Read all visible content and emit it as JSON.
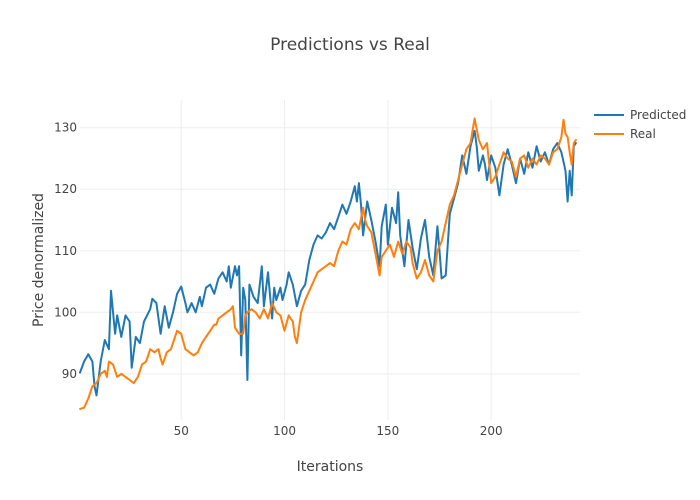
{
  "chart_data": {
    "type": "line",
    "title": "Predictions vs Real",
    "xlabel": "Iterations",
    "ylabel": "Price denormalized",
    "xlim": [
      1,
      243
    ],
    "ylim": [
      82.5,
      134.5
    ],
    "xticks": [
      50,
      100,
      150,
      200
    ],
    "yticks": [
      90,
      100,
      110,
      120,
      130
    ],
    "xtick_labels": [
      "50",
      "100",
      "150",
      "200"
    ],
    "ytick_labels": [
      "90",
      "100",
      "110",
      "120",
      "130"
    ],
    "grid": true,
    "legend_position": "top-right",
    "series": [
      {
        "name": "Predicted",
        "color": "#1f77b4",
        "anchors": [
          [
            1,
            90.2
          ],
          [
            3,
            92.0
          ],
          [
            5,
            93.2
          ],
          [
            7,
            92.0
          ],
          [
            8,
            88.0
          ],
          [
            9,
            86.5
          ],
          [
            11,
            92.0
          ],
          [
            13,
            95.5
          ],
          [
            15,
            94.0
          ],
          [
            16,
            103.5
          ],
          [
            18,
            96.5
          ],
          [
            19,
            99.5
          ],
          [
            21,
            96.0
          ],
          [
            23,
            99.5
          ],
          [
            25,
            98.5
          ],
          [
            26,
            91.0
          ],
          [
            28,
            96.0
          ],
          [
            30,
            95.0
          ],
          [
            32,
            98.5
          ],
          [
            35,
            100.5
          ],
          [
            36,
            102.2
          ],
          [
            38,
            101.5
          ],
          [
            40,
            96.5
          ],
          [
            42,
            101.0
          ],
          [
            44,
            97.5
          ],
          [
            46,
            100.0
          ],
          [
            48,
            103.0
          ],
          [
            50,
            104.2
          ],
          [
            52,
            101.5
          ],
          [
            53,
            100.0
          ],
          [
            55,
            101.5
          ],
          [
            57,
            100.0
          ],
          [
            59,
            102.5
          ],
          [
            60,
            101.0
          ],
          [
            62,
            104.0
          ],
          [
            64,
            104.5
          ],
          [
            66,
            103.0
          ],
          [
            68,
            105.5
          ],
          [
            70,
            106.5
          ],
          [
            72,
            105.0
          ],
          [
            73,
            107.5
          ],
          [
            74,
            104.0
          ],
          [
            76,
            107.5
          ],
          [
            77,
            106.0
          ],
          [
            78,
            107.5
          ],
          [
            79,
            93.0
          ],
          [
            80,
            104.0
          ],
          [
            81,
            102.0
          ],
          [
            82,
            89.0
          ],
          [
            83,
            104.5
          ],
          [
            85,
            102.5
          ],
          [
            87,
            101.5
          ],
          [
            89,
            107.5
          ],
          [
            90,
            101.0
          ],
          [
            92,
            106.5
          ],
          [
            94,
            99.0
          ],
          [
            95,
            104.0
          ],
          [
            96,
            102.0
          ],
          [
            98,
            104.0
          ],
          [
            99,
            102.0
          ],
          [
            101,
            104.5
          ],
          [
            102,
            106.5
          ],
          [
            104,
            104.5
          ],
          [
            106,
            101.0
          ],
          [
            108,
            103.5
          ],
          [
            110,
            104.5
          ],
          [
            112,
            108.5
          ],
          [
            114,
            111.0
          ],
          [
            116,
            112.5
          ],
          [
            118,
            112.0
          ],
          [
            120,
            113.0
          ],
          [
            122,
            114.5
          ],
          [
            124,
            113.5
          ],
          [
            126,
            115.5
          ],
          [
            128,
            117.5
          ],
          [
            130,
            116.0
          ],
          [
            132,
            118.0
          ],
          [
            134,
            120.5
          ],
          [
            135,
            118.0
          ],
          [
            136,
            121.0
          ],
          [
            137,
            117.5
          ],
          [
            138,
            112.5
          ],
          [
            140,
            118.0
          ],
          [
            142,
            115.0
          ],
          [
            144,
            111.5
          ],
          [
            146,
            107.5
          ],
          [
            147,
            114.0
          ],
          [
            149,
            117.5
          ],
          [
            150,
            111.0
          ],
          [
            152,
            117.0
          ],
          [
            154,
            114.5
          ],
          [
            155,
            119.5
          ],
          [
            156,
            112.5
          ],
          [
            158,
            107.5
          ],
          [
            160,
            115.0
          ],
          [
            162,
            110.5
          ],
          [
            164,
            107.0
          ],
          [
            166,
            112.0
          ],
          [
            168,
            115.0
          ],
          [
            170,
            109.0
          ],
          [
            172,
            106.0
          ],
          [
            174,
            114.0
          ],
          [
            175,
            110.0
          ],
          [
            176,
            105.5
          ],
          [
            178,
            106.0
          ],
          [
            180,
            116.0
          ],
          [
            182,
            118.5
          ],
          [
            184,
            121.0
          ],
          [
            186,
            125.5
          ],
          [
            188,
            122.5
          ],
          [
            190,
            127.0
          ],
          [
            192,
            129.5
          ],
          [
            193,
            127.0
          ],
          [
            194,
            123.0
          ],
          [
            196,
            125.5
          ],
          [
            197,
            124.0
          ],
          [
            198,
            121.5
          ],
          [
            200,
            125.5
          ],
          [
            202,
            123.5
          ],
          [
            204,
            119.0
          ],
          [
            206,
            124.0
          ],
          [
            208,
            126.5
          ],
          [
            210,
            124.0
          ],
          [
            212,
            121.0
          ],
          [
            214,
            125.0
          ],
          [
            216,
            122.5
          ],
          [
            218,
            126.0
          ],
          [
            220,
            123.5
          ],
          [
            222,
            127.0
          ],
          [
            224,
            124.5
          ],
          [
            226,
            126.0
          ],
          [
            228,
            124.0
          ],
          [
            230,
            126.5
          ],
          [
            232,
            127.5
          ],
          [
            234,
            126.0
          ],
          [
            236,
            123.0
          ],
          [
            237,
            118.0
          ],
          [
            238,
            123.0
          ],
          [
            239,
            119.0
          ],
          [
            240,
            127.0
          ],
          [
            241,
            127.5
          ]
        ]
      },
      {
        "name": "Real",
        "color": "#ff7f0e",
        "anchors": [
          [
            1,
            84.3
          ],
          [
            3,
            84.5
          ],
          [
            5,
            86.0
          ],
          [
            7,
            88.0
          ],
          [
            9,
            88.5
          ],
          [
            11,
            90.0
          ],
          [
            13,
            90.5
          ],
          [
            14,
            89.5
          ],
          [
            15,
            92.0
          ],
          [
            17,
            91.5
          ],
          [
            19,
            89.5
          ],
          [
            21,
            90.0
          ],
          [
            23,
            89.5
          ],
          [
            25,
            89.0
          ],
          [
            27,
            88.5
          ],
          [
            29,
            89.5
          ],
          [
            31,
            91.5
          ],
          [
            33,
            92.0
          ],
          [
            35,
            94.0
          ],
          [
            37,
            93.5
          ],
          [
            39,
            94.0
          ],
          [
            40,
            92.5
          ],
          [
            41,
            91.5
          ],
          [
            43,
            93.5
          ],
          [
            45,
            94.0
          ],
          [
            47,
            96.0
          ],
          [
            48,
            97.0
          ],
          [
            50,
            96.5
          ],
          [
            52,
            94.0
          ],
          [
            54,
            93.5
          ],
          [
            56,
            93.0
          ],
          [
            58,
            93.5
          ],
          [
            60,
            95.0
          ],
          [
            62,
            96.0
          ],
          [
            64,
            97.0
          ],
          [
            66,
            98.0
          ],
          [
            67,
            98.0
          ],
          [
            68,
            99.0
          ],
          [
            70,
            99.5
          ],
          [
            72,
            100.0
          ],
          [
            74,
            100.5
          ],
          [
            75,
            101.0
          ],
          [
            76,
            97.5
          ],
          [
            78,
            96.5
          ],
          [
            80,
            96.5
          ],
          [
            81,
            99.5
          ],
          [
            82,
            100.0
          ],
          [
            84,
            100.5
          ],
          [
            86,
            100.0
          ],
          [
            88,
            99.0
          ],
          [
            90,
            100.5
          ],
          [
            92,
            99.0
          ],
          [
            94,
            101.5
          ],
          [
            96,
            100.0
          ],
          [
            98,
            99.5
          ],
          [
            100,
            97.0
          ],
          [
            102,
            99.5
          ],
          [
            104,
            98.5
          ],
          [
            105,
            96.0
          ],
          [
            106,
            95.0
          ],
          [
            108,
            100.0
          ],
          [
            110,
            102.0
          ],
          [
            112,
            103.5
          ],
          [
            114,
            105.0
          ],
          [
            116,
            106.5
          ],
          [
            118,
            107.0
          ],
          [
            120,
            107.5
          ],
          [
            122,
            108.0
          ],
          [
            124,
            107.5
          ],
          [
            126,
            110.0
          ],
          [
            128,
            111.5
          ],
          [
            130,
            111.0
          ],
          [
            132,
            113.5
          ],
          [
            134,
            114.5
          ],
          [
            136,
            113.5
          ],
          [
            138,
            117.0
          ],
          [
            139,
            115.0
          ],
          [
            140,
            114.0
          ],
          [
            142,
            113.0
          ],
          [
            144,
            109.5
          ],
          [
            146,
            106.0
          ],
          [
            147,
            109.0
          ],
          [
            149,
            110.0
          ],
          [
            151,
            111.0
          ],
          [
            153,
            109.0
          ],
          [
            155,
            111.5
          ],
          [
            157,
            109.5
          ],
          [
            159,
            111.5
          ],
          [
            161,
            110.5
          ],
          [
            162,
            108.0
          ],
          [
            164,
            105.5
          ],
          [
            166,
            106.5
          ],
          [
            168,
            108.5
          ],
          [
            170,
            106.0
          ],
          [
            172,
            105.0
          ],
          [
            174,
            110.0
          ],
          [
            176,
            111.5
          ],
          [
            178,
            114.5
          ],
          [
            180,
            117.5
          ],
          [
            182,
            119.0
          ],
          [
            184,
            121.5
          ],
          [
            186,
            124.0
          ],
          [
            188,
            126.5
          ],
          [
            190,
            127.5
          ],
          [
            192,
            131.5
          ],
          [
            194,
            128.0
          ],
          [
            196,
            126.5
          ],
          [
            198,
            127.5
          ],
          [
            200,
            121.0
          ],
          [
            202,
            122.0
          ],
          [
            204,
            124.0
          ],
          [
            206,
            126.0
          ],
          [
            208,
            125.0
          ],
          [
            210,
            124.5
          ],
          [
            212,
            122.0
          ],
          [
            214,
            125.0
          ],
          [
            216,
            125.5
          ],
          [
            218,
            123.5
          ],
          [
            220,
            125.0
          ],
          [
            222,
            124.0
          ],
          [
            224,
            125.5
          ],
          [
            226,
            125.0
          ],
          [
            228,
            124.0
          ],
          [
            230,
            126.0
          ],
          [
            232,
            126.5
          ],
          [
            234,
            128.5
          ],
          [
            235,
            131.3
          ],
          [
            236,
            129.0
          ],
          [
            237,
            128.5
          ],
          [
            238,
            126.0
          ],
          [
            239,
            124.0
          ],
          [
            240,
            127.5
          ],
          [
            241,
            128.0
          ]
        ]
      }
    ]
  }
}
